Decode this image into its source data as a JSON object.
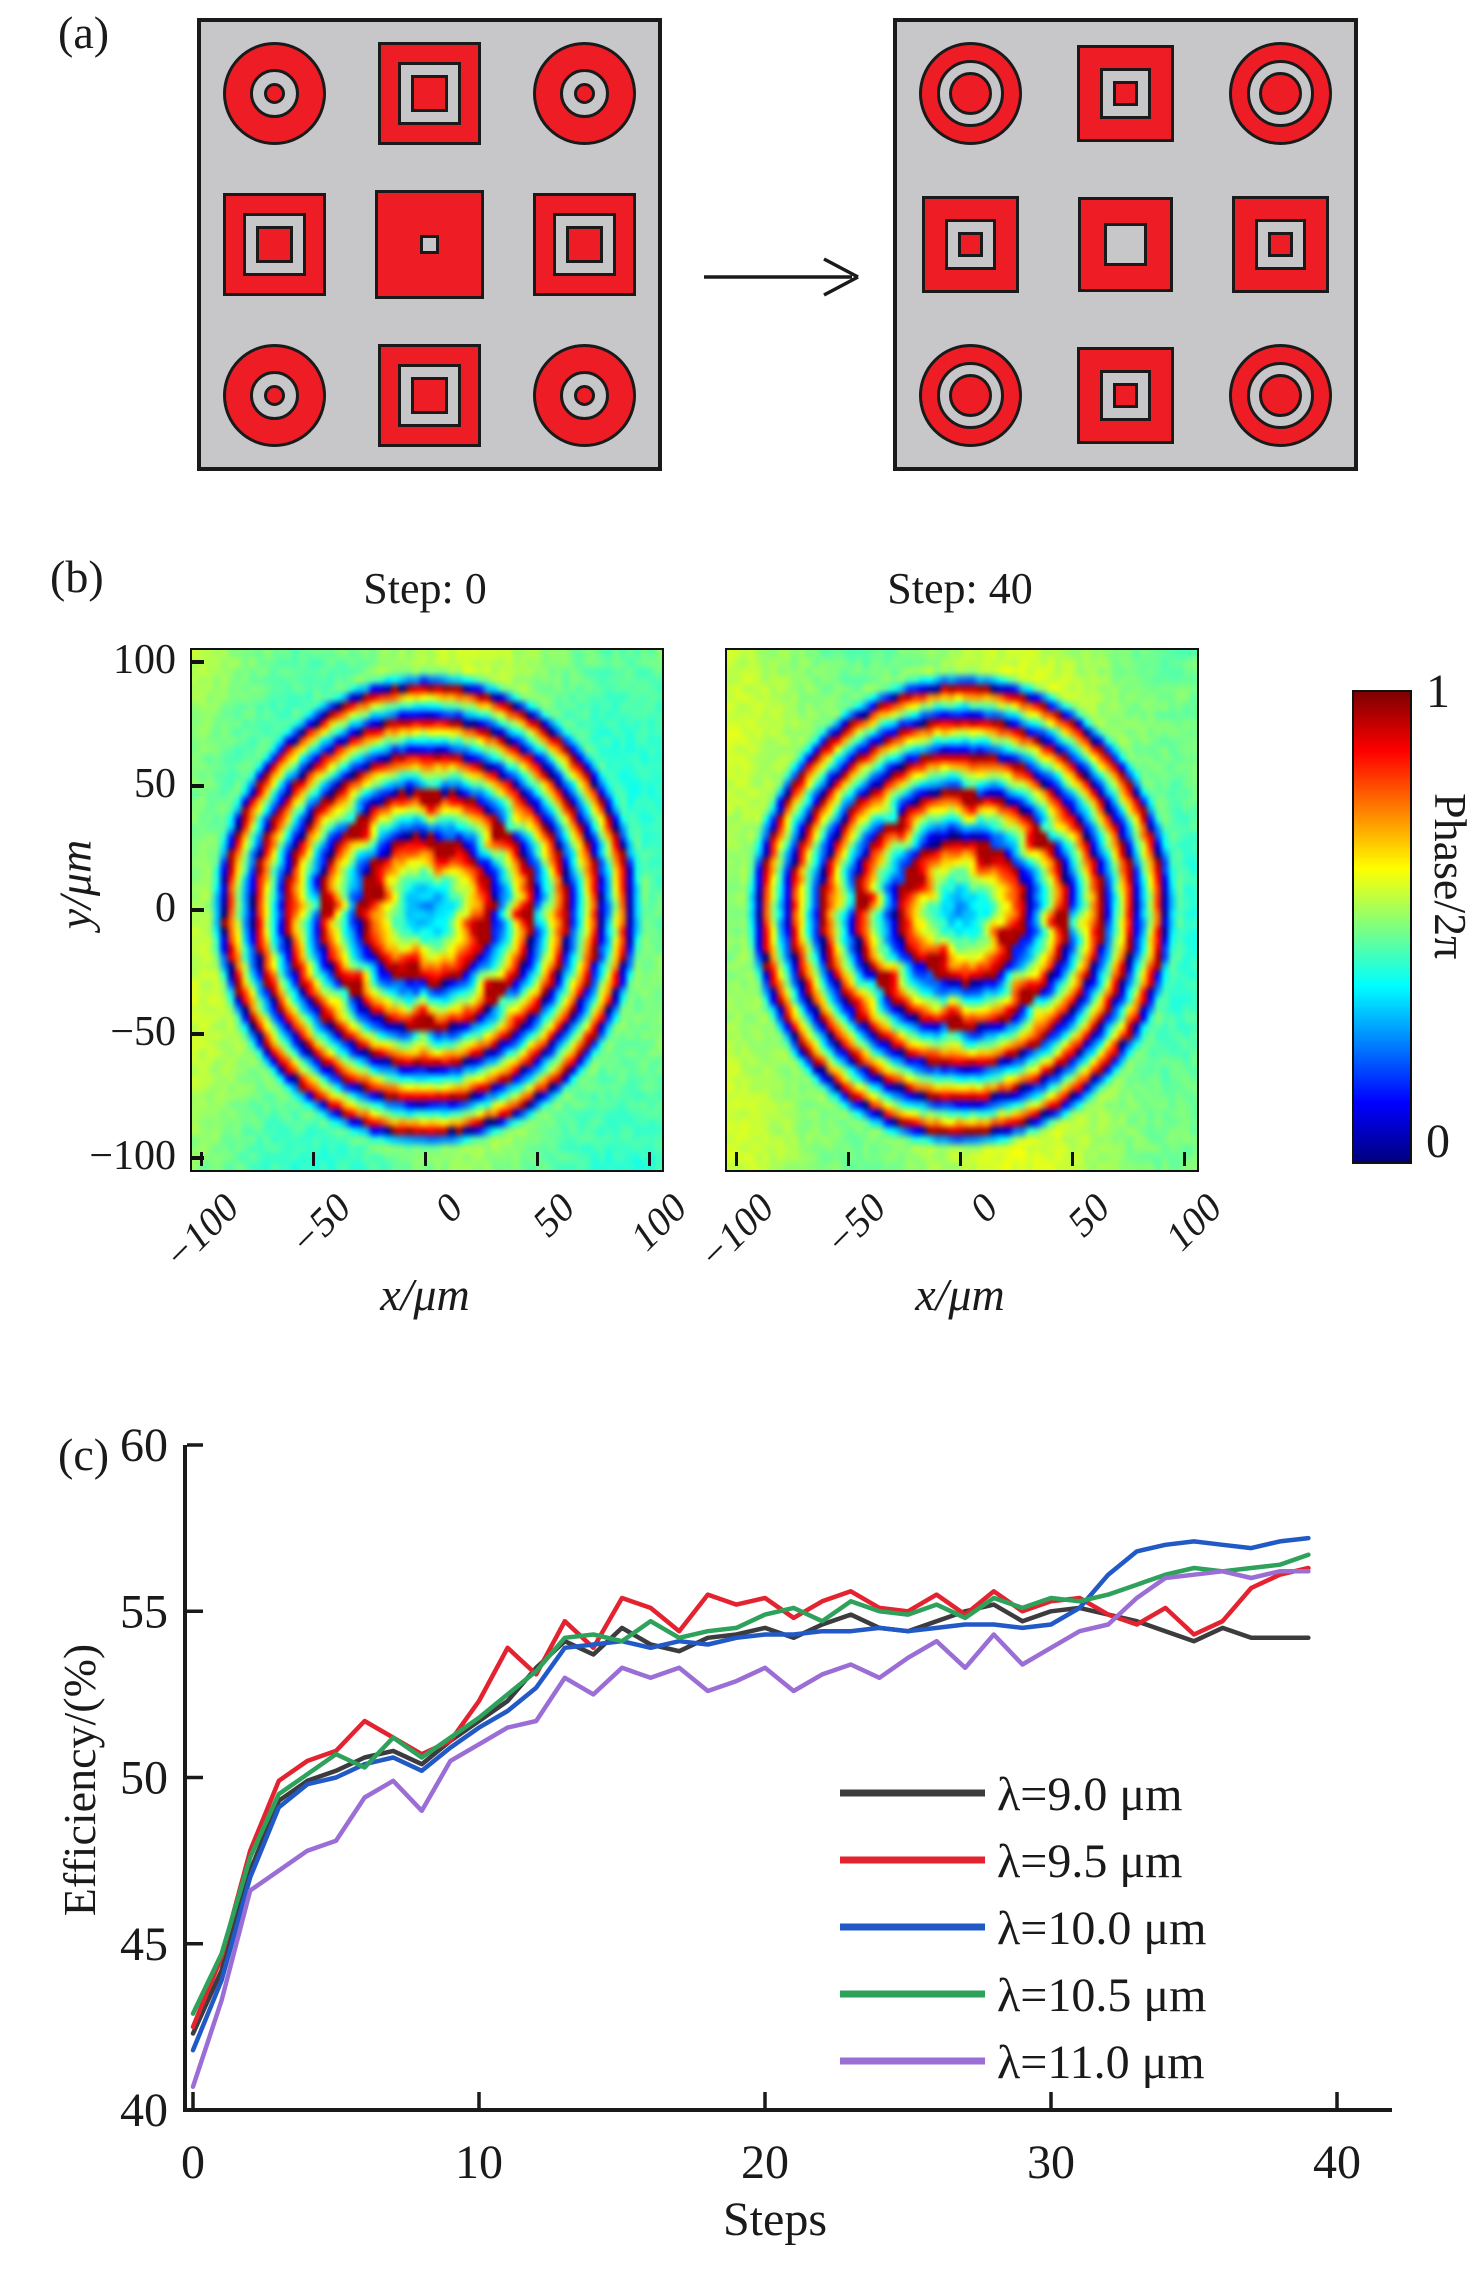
{
  "panel_a": {
    "label": "(a)",
    "colors": {
      "red": "#ee1c25",
      "substrate_gray": "#c7c7c9",
      "outline": "#1a1a1a"
    },
    "grid_initial": {
      "name": "initial unit cells",
      "cells": [
        [
          "circle_dot",
          "square_frame",
          "circle_dot"
        ],
        [
          "square_frame",
          "square_solid_hole",
          "square_frame"
        ],
        [
          "circle_dot",
          "square_frame",
          "circle_dot"
        ]
      ]
    },
    "grid_optimized": {
      "name": "optimized unit cells",
      "cells": [
        [
          "circle_thick",
          "square_core",
          "circle_thick"
        ],
        [
          "square_core",
          "square_hole",
          "square_core"
        ],
        [
          "circle_thick",
          "square_core",
          "circle_thick"
        ]
      ]
    }
  },
  "panel_b": {
    "label": "(b)",
    "plots": [
      {
        "title": "Step: 0"
      },
      {
        "title": "Step: 40"
      }
    ],
    "xlabel": "x/μm",
    "ylabel": "y/μm",
    "xticks": [
      "−100",
      "−50",
      "0",
      "50",
      "100"
    ],
    "yticks": [
      "100",
      "50",
      "0",
      "−50",
      "−100"
    ],
    "colorbar": {
      "label": "Phase/2π",
      "top_tick": "1",
      "bottom_tick": "0",
      "colormap": "jet"
    }
  },
  "panel_c": {
    "label": "(c)",
    "xlabel": "Steps",
    "ylabel": "Efficiency/(%)",
    "xticks": [
      0,
      10,
      20,
      30,
      40
    ],
    "yticks": [
      40,
      45,
      50,
      55,
      60
    ]
  },
  "chart_data": [
    {
      "type": "heatmap",
      "title": "Step: 0",
      "xlabel": "x/μm",
      "ylabel": "y/μm",
      "x_range": [
        -105,
        105
      ],
      "y_range": [
        -105,
        105
      ],
      "xticks": [
        -100,
        -50,
        0,
        50,
        100
      ],
      "yticks": [
        100,
        50,
        0,
        -50,
        -100
      ],
      "colorbar": {
        "label": "Phase/2π",
        "range": [
          0,
          1
        ],
        "colormap": "jet"
      },
      "pattern": "normalized phase (phase/2pi) of focusing metalens: cyan-blue speckled center ~0.3, 2pi wrap rings near r=30,48,63,77,88 um, red dotted arcs near r=22 and r=45 um, strong red ring near r=90 um, uniform green ~0.5 outside r=100 um",
      "generation": {
        "focal_f_um": 50,
        "wrap_period_um": 11.3,
        "phase_offset": 0.28
      }
    },
    {
      "type": "heatmap",
      "title": "Step: 40",
      "xlabel": "x/μm",
      "ylabel": "y/μm",
      "x_range": [
        -105,
        105
      ],
      "y_range": [
        -105,
        105
      ],
      "xticks": [
        -100,
        -50,
        0,
        50,
        100
      ],
      "yticks": [
        100,
        50,
        0,
        -50,
        -100
      ],
      "colorbar": {
        "label": "Phase/2π",
        "range": [
          0,
          1
        ],
        "colormap": "jet"
      },
      "pattern": "same ring structure as step 0 with slightly shifted phase and dot positions",
      "generation": {
        "focal_f_um": 50,
        "wrap_period_um": 11.3,
        "phase_offset": 0.3
      }
    },
    {
      "type": "line",
      "xlabel": "Steps",
      "ylabel": "Efficiency/(%)",
      "xlim": [
        0,
        40
      ],
      "ylim": [
        40,
        60
      ],
      "x_start": 0,
      "x_step": 1,
      "legend_position": "inside lower-right",
      "series": [
        {
          "name": "λ=9.0 μm",
          "color": "#3c3c3e",
          "values": [
            42.3,
            44.2,
            47.2,
            49.3,
            49.9,
            50.2,
            50.6,
            50.8,
            50.4,
            51.1,
            51.7,
            52.3,
            53.3,
            54.1,
            53.7,
            54.5,
            54.0,
            53.8,
            54.2,
            54.3,
            54.5,
            54.2,
            54.6,
            54.9,
            54.5,
            54.4,
            54.7,
            55.0,
            55.2,
            54.7,
            55.0,
            55.1,
            54.9,
            54.7,
            54.4,
            54.1,
            54.5,
            54.2,
            54.2,
            54.2
          ]
        },
        {
          "name": "λ=9.5 μm",
          "color": "#e32330",
          "values": [
            42.5,
            44.6,
            47.8,
            49.9,
            50.5,
            50.8,
            51.7,
            51.2,
            50.7,
            51.1,
            52.3,
            53.9,
            53.1,
            54.7,
            53.9,
            55.4,
            55.1,
            54.4,
            55.5,
            55.2,
            55.4,
            54.8,
            55.3,
            55.6,
            55.1,
            55.0,
            55.5,
            54.9,
            55.6,
            55.0,
            55.3,
            55.4,
            54.9,
            54.6,
            55.1,
            54.3,
            54.7,
            55.7,
            56.1,
            56.3
          ]
        },
        {
          "name": "λ=10.0 μm",
          "color": "#2159c6",
          "values": [
            41.8,
            43.9,
            47.0,
            49.1,
            49.8,
            50.0,
            50.4,
            50.6,
            50.2,
            50.9,
            51.5,
            52.0,
            52.7,
            53.9,
            54.0,
            54.1,
            53.9,
            54.1,
            54.0,
            54.2,
            54.3,
            54.3,
            54.4,
            54.4,
            54.5,
            54.4,
            54.5,
            54.6,
            54.6,
            54.5,
            54.6,
            55.1,
            56.1,
            56.8,
            57.0,
            57.1,
            57.0,
            56.9,
            57.1,
            57.2
          ]
        },
        {
          "name": "λ=10.5 μm",
          "color": "#2ea15b",
          "values": [
            42.9,
            44.7,
            47.6,
            49.5,
            50.1,
            50.7,
            50.3,
            51.2,
            50.6,
            51.2,
            51.8,
            52.5,
            53.2,
            54.2,
            54.3,
            54.1,
            54.7,
            54.2,
            54.4,
            54.5,
            54.9,
            55.1,
            54.7,
            55.3,
            55.0,
            54.9,
            55.2,
            54.8,
            55.4,
            55.1,
            55.4,
            55.3,
            55.5,
            55.8,
            56.1,
            56.3,
            56.2,
            56.3,
            56.4,
            56.7
          ]
        },
        {
          "name": "λ=11.0 μm",
          "color": "#9b6ed6",
          "values": [
            40.7,
            43.3,
            46.6,
            47.2,
            47.8,
            48.1,
            49.4,
            49.9,
            49.0,
            50.5,
            51.0,
            51.5,
            51.7,
            53.0,
            52.5,
            53.3,
            53.0,
            53.3,
            52.6,
            52.9,
            53.3,
            52.6,
            53.1,
            53.4,
            53.0,
            53.6,
            54.1,
            53.3,
            54.3,
            53.4,
            53.9,
            54.4,
            54.6,
            55.4,
            56.0,
            56.1,
            56.2,
            56.0,
            56.2,
            56.2
          ]
        }
      ]
    }
  ]
}
